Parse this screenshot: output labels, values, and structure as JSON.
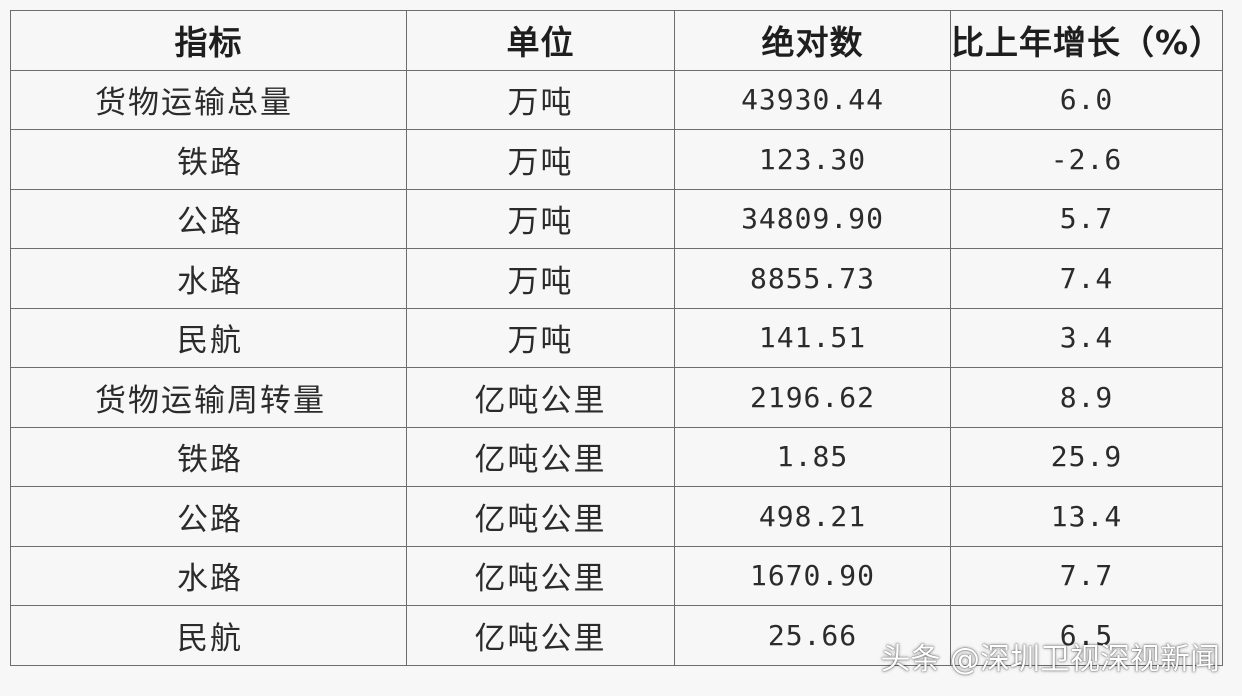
{
  "table": {
    "headers": [
      "指标",
      "单位",
      "绝对数",
      "比上年增长（%）"
    ],
    "rows": [
      {
        "indicator": "货物运输总量",
        "unit": "万吨",
        "absolute": "43930.44",
        "growth": "6.0",
        "level": "main"
      },
      {
        "indicator": "铁路",
        "unit": "万吨",
        "absolute": "123.30",
        "growth": "-2.6",
        "level": "sub"
      },
      {
        "indicator": "公路",
        "unit": "万吨",
        "absolute": "34809.90",
        "growth": "5.7",
        "level": "sub"
      },
      {
        "indicator": "水路",
        "unit": "万吨",
        "absolute": "8855.73",
        "growth": "7.4",
        "level": "sub"
      },
      {
        "indicator": "民航",
        "unit": "万吨",
        "absolute": "141.51",
        "growth": "3.4",
        "level": "sub"
      },
      {
        "indicator": "货物运输周转量",
        "unit": "亿吨公里",
        "absolute": "2196.62",
        "growth": "8.9",
        "level": "main"
      },
      {
        "indicator": "铁路",
        "unit": "亿吨公里",
        "absolute": "1.85",
        "growth": "25.9",
        "level": "sub"
      },
      {
        "indicator": "公路",
        "unit": "亿吨公里",
        "absolute": "498.21",
        "growth": "13.4",
        "level": "sub"
      },
      {
        "indicator": "水路",
        "unit": "亿吨公里",
        "absolute": "1670.90",
        "growth": "7.7",
        "level": "sub"
      },
      {
        "indicator": "民航",
        "unit": "亿吨公里",
        "absolute": "25.66",
        "growth": "6.5",
        "level": "sub"
      }
    ]
  },
  "watermark": {
    "text": "头条 @深圳卫视深视新闻"
  },
  "colors": {
    "background": "#f7f7f7",
    "border": "#6d6d6d",
    "text": "#2b2b2b"
  }
}
